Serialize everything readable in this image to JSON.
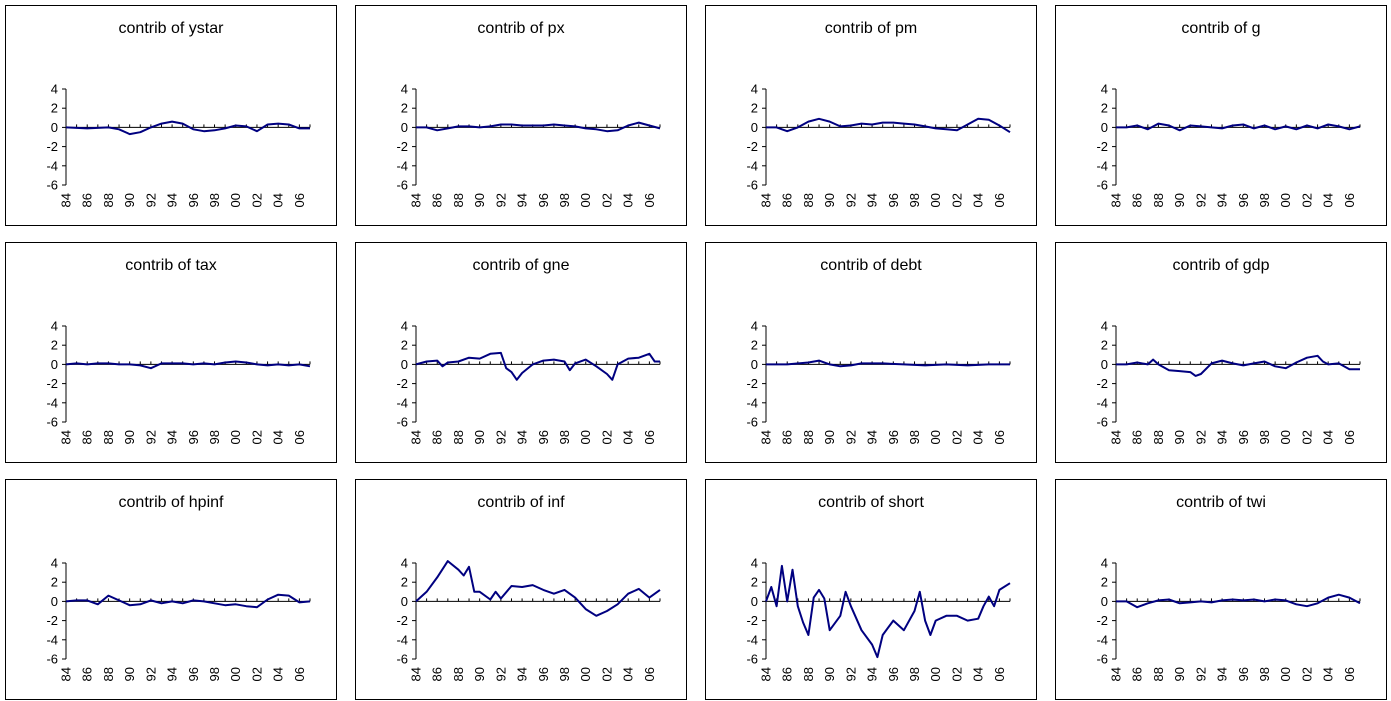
{
  "axis": {
    "yticks": [
      "4",
      "2",
      "0",
      "-2",
      "-4",
      "-6"
    ],
    "xticks": [
      "84",
      "86",
      "88",
      "90",
      "92",
      "94",
      "96",
      "98",
      "00",
      "02",
      "04",
      "06"
    ]
  },
  "chart_data": [
    {
      "type": "line",
      "title": "contrib of ystar",
      "x_range": [
        "1984",
        "2007"
      ],
      "ylim": [
        -6,
        4
      ],
      "line_color": "#000080",
      "points": [
        [
          1984,
          0
        ],
        [
          1986,
          -0.1
        ],
        [
          1988,
          0
        ],
        [
          1989,
          -0.2
        ],
        [
          1990,
          -0.7
        ],
        [
          1991,
          -0.5
        ],
        [
          1992,
          0
        ],
        [
          1993,
          0.4
        ],
        [
          1994,
          0.6
        ],
        [
          1995,
          0.4
        ],
        [
          1996,
          -0.2
        ],
        [
          1997,
          -0.4
        ],
        [
          1998,
          -0.3
        ],
        [
          1999,
          -0.1
        ],
        [
          2000,
          0.2
        ],
        [
          2001,
          0.1
        ],
        [
          2002,
          -0.4
        ],
        [
          2003,
          0.3
        ],
        [
          2004,
          0.4
        ],
        [
          2005,
          0.3
        ],
        [
          2006,
          -0.1
        ],
        [
          2007,
          -0.1
        ]
      ]
    },
    {
      "type": "line",
      "title": "contrib of px",
      "x_range": [
        "1984",
        "2007"
      ],
      "ylim": [
        -6,
        4
      ],
      "line_color": "#000080",
      "points": [
        [
          1984,
          0
        ],
        [
          1985,
          0
        ],
        [
          1986,
          -0.3
        ],
        [
          1987,
          -0.1
        ],
        [
          1988,
          0.1
        ],
        [
          1989,
          0.1
        ],
        [
          1990,
          0
        ],
        [
          1991,
          0.1
        ],
        [
          1992,
          0.3
        ],
        [
          1993,
          0.3
        ],
        [
          1994,
          0.2
        ],
        [
          1995,
          0.2
        ],
        [
          1996,
          0.2
        ],
        [
          1997,
          0.3
        ],
        [
          1998,
          0.2
        ],
        [
          1999,
          0.1
        ],
        [
          2000,
          -0.1
        ],
        [
          2001,
          -0.2
        ],
        [
          2002,
          -0.4
        ],
        [
          2003,
          -0.3
        ],
        [
          2004,
          0.2
        ],
        [
          2005,
          0.5
        ],
        [
          2006,
          0.2
        ],
        [
          2007,
          -0.1
        ]
      ]
    },
    {
      "type": "line",
      "title": "contrib of pm",
      "x_range": [
        "1984",
        "2007"
      ],
      "ylim": [
        -6,
        4
      ],
      "line_color": "#000080",
      "points": [
        [
          1984,
          0
        ],
        [
          1985,
          0
        ],
        [
          1986,
          -0.4
        ],
        [
          1987,
          0
        ],
        [
          1988,
          0.6
        ],
        [
          1989,
          0.9
        ],
        [
          1990,
          0.6
        ],
        [
          1991,
          0.1
        ],
        [
          1992,
          0.2
        ],
        [
          1993,
          0.4
        ],
        [
          1994,
          0.3
        ],
        [
          1995,
          0.5
        ],
        [
          1996,
          0.5
        ],
        [
          1997,
          0.4
        ],
        [
          1998,
          0.3
        ],
        [
          1999,
          0.1
        ],
        [
          2000,
          -0.1
        ],
        [
          2001,
          -0.2
        ],
        [
          2002,
          -0.3
        ],
        [
          2003,
          0.3
        ],
        [
          2004,
          0.9
        ],
        [
          2005,
          0.8
        ],
        [
          2006,
          0.2
        ],
        [
          2007,
          -0.5
        ]
      ]
    },
    {
      "type": "line",
      "title": "contrib of g",
      "x_range": [
        "1984",
        "2007"
      ],
      "ylim": [
        -6,
        4
      ],
      "line_color": "#000080",
      "points": [
        [
          1984,
          0
        ],
        [
          1985,
          0
        ],
        [
          1986,
          0.2
        ],
        [
          1987,
          -0.2
        ],
        [
          1988,
          0.4
        ],
        [
          1989,
          0.2
        ],
        [
          1990,
          -0.3
        ],
        [
          1991,
          0.2
        ],
        [
          1992,
          0.1
        ],
        [
          1993,
          0
        ],
        [
          1994,
          -0.1
        ],
        [
          1995,
          0.2
        ],
        [
          1996,
          0.3
        ],
        [
          1997,
          -0.1
        ],
        [
          1998,
          0.2
        ],
        [
          1999,
          -0.2
        ],
        [
          2000,
          0.1
        ],
        [
          2001,
          -0.2
        ],
        [
          2002,
          0.2
        ],
        [
          2003,
          -0.1
        ],
        [
          2004,
          0.3
        ],
        [
          2005,
          0.1
        ],
        [
          2006,
          -0.2
        ],
        [
          2007,
          0.1
        ]
      ]
    },
    {
      "type": "line",
      "title": "contrib of tax",
      "x_range": [
        "1984",
        "2007"
      ],
      "ylim": [
        -6,
        4
      ],
      "line_color": "#000080",
      "points": [
        [
          1984,
          0
        ],
        [
          1985,
          0.1
        ],
        [
          1986,
          0
        ],
        [
          1987,
          0.1
        ],
        [
          1988,
          0.1
        ],
        [
          1989,
          0
        ],
        [
          1990,
          0
        ],
        [
          1991,
          -0.1
        ],
        [
          1992,
          -0.4
        ],
        [
          1993,
          0.1
        ],
        [
          1994,
          0.1
        ],
        [
          1995,
          0.1
        ],
        [
          1996,
          0
        ],
        [
          1997,
          0.1
        ],
        [
          1998,
          0
        ],
        [
          1999,
          0.2
        ],
        [
          2000,
          0.3
        ],
        [
          2001,
          0.2
        ],
        [
          2002,
          0
        ],
        [
          2003,
          -0.1
        ],
        [
          2004,
          0
        ],
        [
          2005,
          -0.1
        ],
        [
          2006,
          0
        ],
        [
          2007,
          -0.2
        ]
      ]
    },
    {
      "type": "line",
      "title": "contrib of gne",
      "x_range": [
        "1984",
        "2007"
      ],
      "ylim": [
        -6,
        4
      ],
      "line_color": "#000080",
      "points": [
        [
          1984,
          0
        ],
        [
          1985,
          0.3
        ],
        [
          1986,
          0.4
        ],
        [
          1986.5,
          -0.2
        ],
        [
          1987,
          0.2
        ],
        [
          1988,
          0.3
        ],
        [
          1989,
          0.7
        ],
        [
          1990,
          0.6
        ],
        [
          1991,
          1.1
        ],
        [
          1992,
          1.2
        ],
        [
          1992.5,
          -0.4
        ],
        [
          1993,
          -0.8
        ],
        [
          1993.5,
          -1.6
        ],
        [
          1994,
          -0.9
        ],
        [
          1995,
          0
        ],
        [
          1996,
          0.4
        ],
        [
          1997,
          0.5
        ],
        [
          1998,
          0.3
        ],
        [
          1998.5,
          -0.6
        ],
        [
          1999,
          0.1
        ],
        [
          2000,
          0.5
        ],
        [
          2001,
          -0.2
        ],
        [
          2002,
          -1
        ],
        [
          2002.5,
          -1.6
        ],
        [
          2003,
          0
        ],
        [
          2004,
          0.6
        ],
        [
          2005,
          0.7
        ],
        [
          2006,
          1.1
        ],
        [
          2006.5,
          0.3
        ],
        [
          2007,
          0.3
        ]
      ]
    },
    {
      "type": "line",
      "title": "contrib of debt",
      "x_range": [
        "1984",
        "2007"
      ],
      "ylim": [
        -6,
        4
      ],
      "line_color": "#000080",
      "points": [
        [
          1984,
          0
        ],
        [
          1986,
          0
        ],
        [
          1988,
          0.2
        ],
        [
          1989,
          0.4
        ],
        [
          1990,
          0
        ],
        [
          1991,
          -0.2
        ],
        [
          1992,
          -0.1
        ],
        [
          1993,
          0.1
        ],
        [
          1995,
          0.1
        ],
        [
          1997,
          0
        ],
        [
          1999,
          -0.1
        ],
        [
          2001,
          0
        ],
        [
          2003,
          -0.1
        ],
        [
          2005,
          0
        ],
        [
          2007,
          0
        ]
      ]
    },
    {
      "type": "line",
      "title": "contrib of gdp",
      "x_range": [
        "1984",
        "2007"
      ],
      "ylim": [
        -6,
        4
      ],
      "line_color": "#000080",
      "points": [
        [
          1984,
          0
        ],
        [
          1985,
          0
        ],
        [
          1986,
          0.2
        ],
        [
          1987,
          0
        ],
        [
          1987.5,
          0.5
        ],
        [
          1988,
          0
        ],
        [
          1989,
          -0.6
        ],
        [
          1990,
          -0.7
        ],
        [
          1991,
          -0.8
        ],
        [
          1991.5,
          -1.2
        ],
        [
          1992,
          -1
        ],
        [
          1993,
          0.1
        ],
        [
          1994,
          0.4
        ],
        [
          1995,
          0.1
        ],
        [
          1996,
          -0.1
        ],
        [
          1997,
          0.1
        ],
        [
          1998,
          0.3
        ],
        [
          1999,
          -0.2
        ],
        [
          2000,
          -0.4
        ],
        [
          2001,
          0.2
        ],
        [
          2002,
          0.7
        ],
        [
          2003,
          0.9
        ],
        [
          2003.5,
          0.3
        ],
        [
          2004,
          0
        ],
        [
          2005,
          0.1
        ],
        [
          2006,
          -0.5
        ],
        [
          2007,
          -0.5
        ]
      ]
    },
    {
      "type": "line",
      "title": "contrib of hpinf",
      "x_range": [
        "1984",
        "2007"
      ],
      "ylim": [
        -6,
        4
      ],
      "line_color": "#000080",
      "points": [
        [
          1984,
          0
        ],
        [
          1985,
          0.1
        ],
        [
          1986,
          0.1
        ],
        [
          1987,
          -0.3
        ],
        [
          1988,
          0.6
        ],
        [
          1989,
          0.1
        ],
        [
          1990,
          -0.4
        ],
        [
          1991,
          -0.3
        ],
        [
          1992,
          0.1
        ],
        [
          1993,
          -0.2
        ],
        [
          1994,
          0
        ],
        [
          1995,
          -0.2
        ],
        [
          1996,
          0.1
        ],
        [
          1997,
          0
        ],
        [
          1998,
          -0.2
        ],
        [
          1999,
          -0.4
        ],
        [
          2000,
          -0.3
        ],
        [
          2001,
          -0.5
        ],
        [
          2002,
          -0.6
        ],
        [
          2003,
          0.2
        ],
        [
          2004,
          0.7
        ],
        [
          2005,
          0.6
        ],
        [
          2006,
          -0.1
        ],
        [
          2007,
          0
        ]
      ]
    },
    {
      "type": "line",
      "title": "contrib of inf",
      "x_range": [
        "1984",
        "2007"
      ],
      "ylim": [
        -6,
        4
      ],
      "line_color": "#000080",
      "points": [
        [
          1984,
          0
        ],
        [
          1985,
          1
        ],
        [
          1986,
          2.5
        ],
        [
          1987,
          4.2
        ],
        [
          1988,
          3.3
        ],
        [
          1988.5,
          2.7
        ],
        [
          1989,
          3.6
        ],
        [
          1989.5,
          1
        ],
        [
          1990,
          1
        ],
        [
          1991,
          0.2
        ],
        [
          1991.5,
          1
        ],
        [
          1992,
          0.3
        ],
        [
          1993,
          1.6
        ],
        [
          1994,
          1.5
        ],
        [
          1995,
          1.7
        ],
        [
          1996,
          1.2
        ],
        [
          1997,
          0.8
        ],
        [
          1998,
          1.2
        ],
        [
          1999,
          0.4
        ],
        [
          2000,
          -0.8
        ],
        [
          2001,
          -1.5
        ],
        [
          2002,
          -1
        ],
        [
          2003,
          -0.3
        ],
        [
          2004,
          0.8
        ],
        [
          2005,
          1.3
        ],
        [
          2006,
          0.4
        ],
        [
          2007,
          1.2
        ]
      ]
    },
    {
      "type": "line",
      "title": "contrib of short",
      "x_range": [
        "1984",
        "2007"
      ],
      "ylim": [
        -6,
        4
      ],
      "line_color": "#000080",
      "points": [
        [
          1984,
          0
        ],
        [
          1984.5,
          1.5
        ],
        [
          1985,
          -0.5
        ],
        [
          1985.5,
          3.7
        ],
        [
          1986,
          0
        ],
        [
          1986.5,
          3.3
        ],
        [
          1987,
          -0.5
        ],
        [
          1987.5,
          -2.2
        ],
        [
          1988,
          -3.5
        ],
        [
          1988.5,
          0.4
        ],
        [
          1989,
          1.2
        ],
        [
          1989.5,
          0.3
        ],
        [
          1990,
          -3
        ],
        [
          1991,
          -1.5
        ],
        [
          1991.5,
          1
        ],
        [
          1992,
          -0.5
        ],
        [
          1993,
          -3
        ],
        [
          1994,
          -4.5
        ],
        [
          1994.5,
          -5.8
        ],
        [
          1995,
          -3.5
        ],
        [
          1996,
          -2
        ],
        [
          1997,
          -3
        ],
        [
          1998,
          -1
        ],
        [
          1998.5,
          1
        ],
        [
          1999,
          -2
        ],
        [
          1999.5,
          -3.5
        ],
        [
          2000,
          -2
        ],
        [
          2001,
          -1.5
        ],
        [
          2002,
          -1.5
        ],
        [
          2003,
          -2
        ],
        [
          2004,
          -1.8
        ],
        [
          2004.5,
          -0.5
        ],
        [
          2005,
          0.5
        ],
        [
          2005.5,
          -0.5
        ],
        [
          2006,
          1.2
        ],
        [
          2007,
          1.9
        ]
      ]
    },
    {
      "type": "line",
      "title": "contrib of twi",
      "x_range": [
        "1984",
        "2007"
      ],
      "ylim": [
        -6,
        4
      ],
      "line_color": "#000080",
      "points": [
        [
          1984,
          0
        ],
        [
          1985,
          0
        ],
        [
          1986,
          -0.6
        ],
        [
          1987,
          -0.2
        ],
        [
          1988,
          0.1
        ],
        [
          1989,
          0.2
        ],
        [
          1990,
          -0.2
        ],
        [
          1991,
          -0.1
        ],
        [
          1992,
          0
        ],
        [
          1993,
          -0.1
        ],
        [
          1994,
          0.1
        ],
        [
          1995,
          0.2
        ],
        [
          1996,
          0.1
        ],
        [
          1997,
          0.2
        ],
        [
          1998,
          0
        ],
        [
          1999,
          0.2
        ],
        [
          2000,
          0.1
        ],
        [
          2001,
          -0.3
        ],
        [
          2002,
          -0.5
        ],
        [
          2003,
          -0.2
        ],
        [
          2004,
          0.4
        ],
        [
          2005,
          0.7
        ],
        [
          2006,
          0.4
        ],
        [
          2007,
          -0.2
        ]
      ]
    }
  ]
}
